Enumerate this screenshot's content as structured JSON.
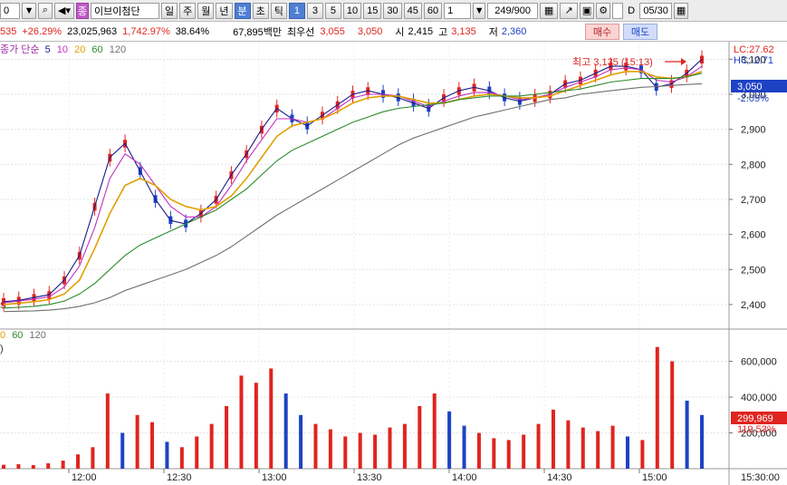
{
  "toolbar": {
    "code_value": "0",
    "stock_badge": "종",
    "stock_name": "이브이첨단",
    "period_labels": [
      "일",
      "주",
      "월",
      "년"
    ],
    "selected_period": "분",
    "tick_label": "초",
    "tick2_label": "틱",
    "intervals": [
      "1",
      "3",
      "5",
      "10",
      "15",
      "30",
      "45",
      "60"
    ],
    "interval_input": "1",
    "count": "249/900",
    "checkbox_label": "D",
    "date": "05/30"
  },
  "info": {
    "price_partial": "535",
    "change_pct": "+26.29%",
    "volume": "23,025,963",
    "volume_ratio": "1,742.97%",
    "turnover": "38.64%",
    "amount": "67,895백만",
    "best_label": "최우선",
    "best_ask": "3,055",
    "best_bid": "3,050",
    "open_label": "시",
    "open": "2,415",
    "high_label": "고",
    "high": "3,135",
    "low_label": "저",
    "low": "2,360",
    "buy_label": "매수",
    "sell_label": "매도"
  },
  "price_panel": {
    "legend": {
      "name": "종가 단순",
      "ma": [
        "5",
        "10",
        "20",
        "60",
        "120"
      ]
    },
    "annotation": "최고 3,135 (15:13)",
    "lc_label": "LC:27.62",
    "hc_label": "HC:-2.71",
    "current_tag": "3,050",
    "current_pct": "-2.09%",
    "left_marker": "S"
  },
  "volume_panel": {
    "legend": [
      "0",
      "60",
      "120"
    ],
    "left_marker": ")",
    "current_tag": "299,969",
    "current_pct": "119.53%"
  },
  "colors": {
    "up": "#e0241f",
    "down": "#1d42c4",
    "ma5": "#1a1a8a",
    "ma10": "#c232c2",
    "ma20": "#e0a000",
    "ma60": "#2a8a2a",
    "ma120": "#707070"
  },
  "chart_data": [
    {
      "type": "candlestick",
      "title": "",
      "y_ticks": [
        2400,
        2500,
        2600,
        2700,
        2800,
        2900,
        3000,
        3100
      ],
      "y_tick_labels": [
        "2,400",
        "2,500",
        "2,600",
        "2,700",
        "2,800",
        "2,900",
        "3,000",
        "3,100"
      ],
      "ylim": [
        2330,
        3150
      ],
      "x_tick_labels": [
        "12:00",
        "12:30",
        "13:00",
        "13:30",
        "14:00",
        "14:30",
        "15:00",
        "15:30:00"
      ],
      "series": [
        {
          "name": "5",
          "values": [
            2408,
            2412,
            2420,
            2428,
            2470,
            2540,
            2680,
            2820,
            2860,
            2780,
            2700,
            2640,
            2630,
            2660,
            2700,
            2770,
            2830,
            2900,
            2960,
            2930,
            2910,
            2940,
            2970,
            3000,
            3010,
            3000,
            2990,
            2975,
            2960,
            2990,
            3010,
            3020,
            3010,
            2990,
            2980,
            2990,
            3000,
            3030,
            3040,
            3060,
            3080,
            3080,
            3070,
            3020,
            3030,
            3060,
            3100
          ]
        },
        {
          "name": "10",
          "values": [
            2405,
            2410,
            2415,
            2422,
            2450,
            2510,
            2620,
            2760,
            2830,
            2800,
            2740,
            2680,
            2650,
            2650,
            2680,
            2740,
            2810,
            2870,
            2930,
            2930,
            2920,
            2930,
            2960,
            2990,
            3000,
            3000,
            2995,
            2980,
            2965,
            2980,
            2995,
            3005,
            3005,
            2995,
            2985,
            2990,
            3000,
            3020,
            3035,
            3050,
            3070,
            3075,
            3070,
            3040,
            3035,
            3050,
            3080
          ]
        },
        {
          "name": "20",
          "values": [
            2400,
            2404,
            2408,
            2414,
            2430,
            2470,
            2560,
            2660,
            2740,
            2760,
            2740,
            2700,
            2680,
            2670,
            2680,
            2710,
            2760,
            2820,
            2880,
            2910,
            2920,
            2930,
            2950,
            2975,
            2990,
            2995,
            2995,
            2985,
            2975,
            2975,
            2985,
            2995,
            3000,
            2995,
            2990,
            2990,
            2995,
            3010,
            3025,
            3040,
            3055,
            3065,
            3065,
            3050,
            3045,
            3050,
            3065
          ]
        },
        {
          "name": "60",
          "values": [
            2390,
            2392,
            2395,
            2400,
            2410,
            2430,
            2460,
            2500,
            2540,
            2570,
            2590,
            2610,
            2630,
            2650,
            2670,
            2700,
            2730,
            2770,
            2810,
            2840,
            2860,
            2880,
            2900,
            2920,
            2935,
            2950,
            2960,
            2965,
            2970,
            2975,
            2985,
            2990,
            2995,
            2995,
            2995,
            3000,
            3005,
            3010,
            3015,
            3025,
            3035,
            3040,
            3045,
            3045,
            3045,
            3050,
            3060
          ]
        },
        {
          "name": "120",
          "values": [
            2380,
            2381,
            2382,
            2384,
            2388,
            2395,
            2405,
            2420,
            2440,
            2455,
            2470,
            2485,
            2500,
            2520,
            2540,
            2565,
            2595,
            2625,
            2655,
            2680,
            2705,
            2730,
            2755,
            2780,
            2805,
            2830,
            2855,
            2875,
            2890,
            2905,
            2920,
            2935,
            2945,
            2955,
            2965,
            2975,
            2985,
            2990,
            3000,
            3005,
            3010,
            3015,
            3020,
            3022,
            3025,
            3028,
            3030
          ]
        }
      ],
      "annotations": {
        "high": 3135,
        "high_time": "15:13"
      }
    },
    {
      "type": "bar",
      "title": "",
      "y_ticks": [
        200000,
        400000,
        600000
      ],
      "y_tick_labels": [
        "200,000",
        "400,000",
        "600,000"
      ],
      "ylim": [
        0,
        780000
      ],
      "x_tick_labels": [
        "12:00",
        "12:30",
        "13:00",
        "13:30",
        "14:00",
        "14:30",
        "15:00",
        "15:30:00"
      ],
      "values": [
        22000,
        25000,
        20000,
        30000,
        45000,
        80000,
        120000,
        420000,
        200000,
        300000,
        260000,
        150000,
        120000,
        180000,
        250000,
        350000,
        520000,
        480000,
        560000,
        420000,
        300000,
        250000,
        220000,
        180000,
        200000,
        190000,
        230000,
        250000,
        350000,
        420000,
        320000,
        240000,
        200000,
        170000,
        160000,
        190000,
        250000,
        330000,
        270000,
        230000,
        210000,
        240000,
        180000,
        160000,
        680000,
        600000,
        380000,
        299969
      ]
    }
  ]
}
